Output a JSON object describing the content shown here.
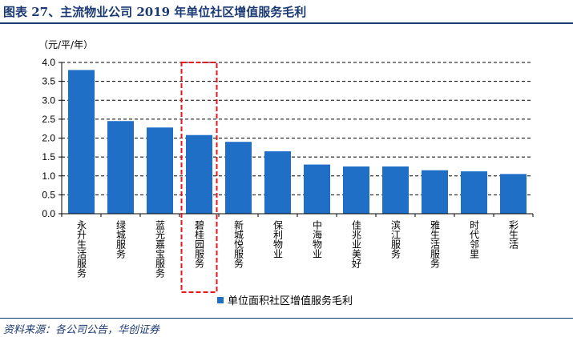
{
  "header": {
    "title": "图表 27、主流物业公司 2019 年单位社区增值服务毛利"
  },
  "footer": {
    "source": "资料来源：各公司公告，华创证券"
  },
  "chart_data": {
    "type": "bar",
    "title": "图表 27、主流物业公司 2019 年单位社区增值服务毛利",
    "unit_label": "（元/平/年）",
    "categories": [
      "永升生活服务",
      "绿城服务",
      "蓝光嘉宝服务",
      "碧桂园服务",
      "新城悦服务",
      "保利物业",
      "中海物业",
      "佳兆业美好",
      "滨江服务",
      "雅生活服务",
      "时代邻里",
      "彩生活"
    ],
    "series": [
      {
        "name": "单位面积社区增值服务毛利",
        "values": [
          3.8,
          2.45,
          2.28,
          2.08,
          1.9,
          1.65,
          1.3,
          1.25,
          1.25,
          1.15,
          1.12,
          1.05
        ]
      }
    ],
    "y_ticks": [
      "0.0",
      "0.5",
      "1.0",
      "1.5",
      "2.0",
      "2.5",
      "3.0",
      "3.5",
      "4.0"
    ],
    "ylim": [
      0,
      4.0
    ],
    "grid": true,
    "legend_position": "bottom-center",
    "highlight_category": "碧桂园服务",
    "colors": {
      "bar": "#1f6fc7",
      "highlight": "#e8151b",
      "grid": "#000000",
      "accent": "#1b3a73"
    }
  }
}
